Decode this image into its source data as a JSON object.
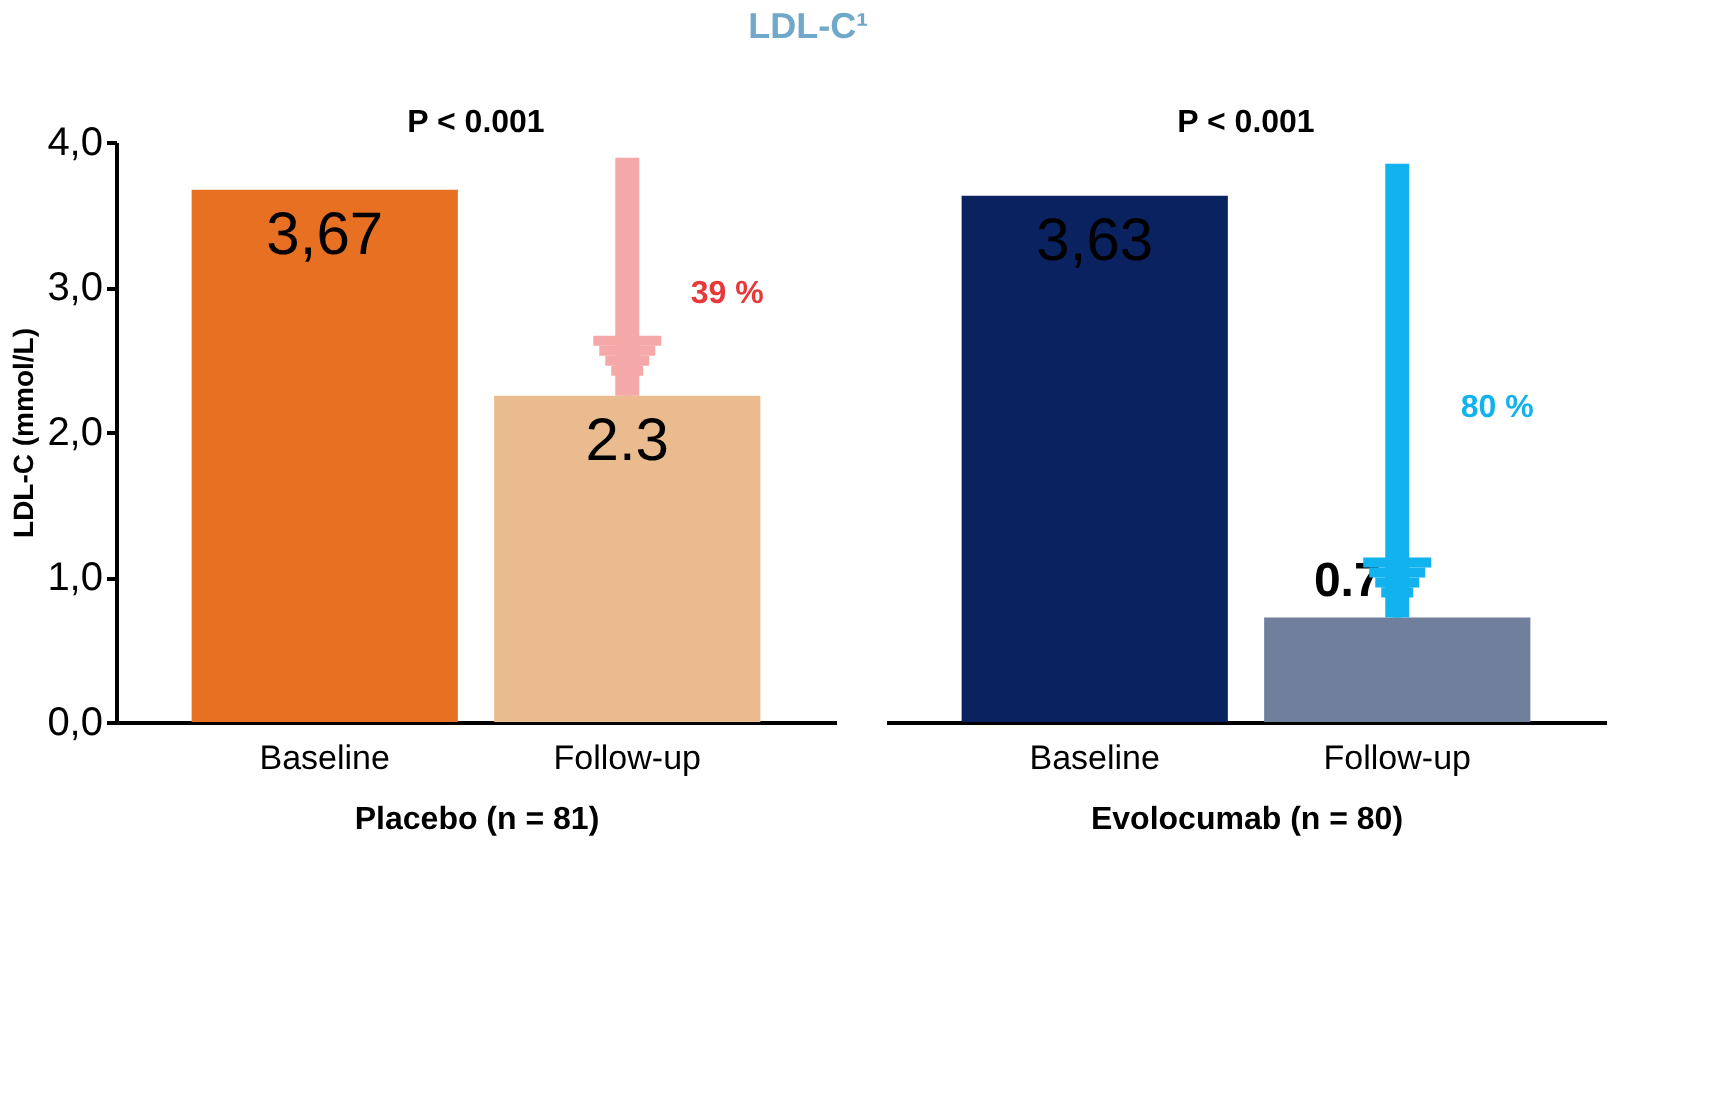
{
  "chart_data": [
    {
      "type": "bar",
      "title": "LDL-C¹",
      "ylabel": "LDL-C (mmol/L)",
      "xlabel": "Placebo (n = 81)",
      "categories": [
        "Baseline",
        "Follow-up"
      ],
      "values": [
        3.67,
        2.25
      ],
      "colors": [
        "#e87022",
        "#e9bb8e"
      ],
      "value_labels": [
        "3,67",
        "2.3"
      ],
      "ylim": [
        0,
        4
      ],
      "yticks": [
        {
          "value": 0,
          "label": "0,0"
        },
        {
          "value": 1,
          "label": "1,0"
        },
        {
          "value": 2,
          "label": "2,0"
        },
        {
          "value": 3,
          "label": "3,0"
        },
        {
          "value": 4,
          "label": "4,0"
        }
      ],
      "grid": false,
      "annotations": [
        "P < 0.001",
        "39 %"
      ]
    },
    {
      "type": "bar",
      "xlabel": "Evolocumab (n = 80)",
      "categories": [
        "Baseline",
        "Follow-up"
      ],
      "values": [
        3.63,
        0.72
      ],
      "colors": [
        "#0b2260",
        "#6f7f9c"
      ],
      "value_labels": [
        "3,63",
        "0.7"
      ],
      "ylim": [
        0,
        4
      ],
      "tick_labels": "x",
      "grid": false,
      "annotations": [
        "P < 0.001",
        "80 %"
      ]
    }
  ]
}
